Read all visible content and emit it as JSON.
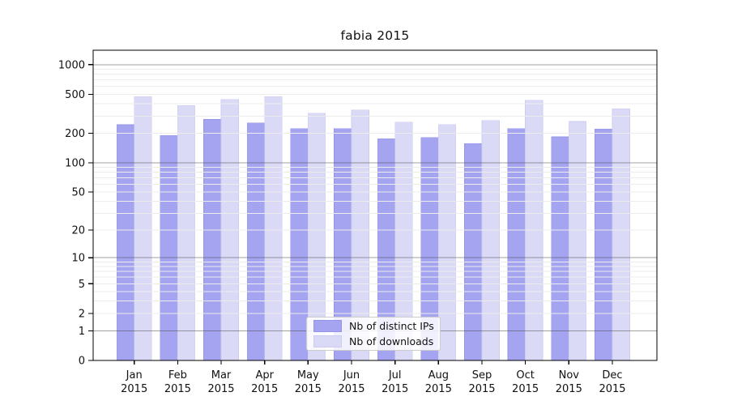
{
  "chart_data": {
    "type": "bar",
    "title": "fabia 2015",
    "categories": [
      "Jan",
      "Feb",
      "Mar",
      "Apr",
      "May",
      "Jun",
      "Jul",
      "Aug",
      "Sep",
      "Oct",
      "Nov",
      "Dec"
    ],
    "year_label": "2015",
    "series": [
      {
        "name": "Nb of distinct IPs",
        "color": "#a4a4f0",
        "edge_color": "#9595e8",
        "values": [
          245,
          190,
          277,
          256,
          223,
          223,
          176,
          182,
          157,
          224,
          184,
          221
        ]
      },
      {
        "name": "Nb of downloads",
        "color": "#dadaf6",
        "edge_color": "#ccccf0",
        "values": [
          475,
          385,
          443,
          475,
          320,
          347,
          260,
          246,
          270,
          436,
          264,
          356
        ]
      }
    ],
    "y_axis": {
      "scale": "log1p",
      "ticks": [
        0,
        1,
        2,
        5,
        10,
        20,
        50,
        100,
        200,
        500,
        1000
      ],
      "max": 1400
    },
    "grid": {
      "major_values": [
        1,
        10,
        100,
        1000
      ],
      "major_color": "rgba(70,70,70,0.5)",
      "minor_color": "#ececec"
    },
    "legend_position": "lower center inside plot"
  }
}
